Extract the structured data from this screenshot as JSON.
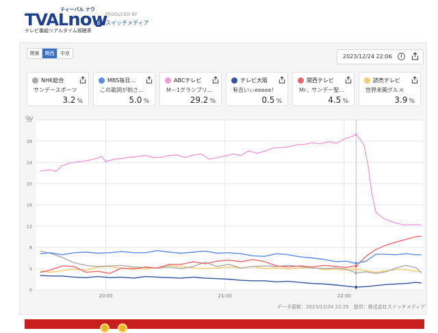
{
  "header": {
    "logo_text": "TVAL",
    "logo_now": "now",
    "logo_kana": "ティーバル ナウ",
    "logo_badge": "B",
    "logo_subtitle": "テレビ番組リアルタイム視聴率",
    "produced_by": "PRODUCED BY",
    "producer": "スイッチメディア"
  },
  "region_tabs": [
    {
      "label": "関東",
      "active": false
    },
    {
      "label": "関西",
      "active": true
    },
    {
      "label": "中京",
      "active": false
    }
  ],
  "timestamp": "2023/12/24 22:06",
  "cards": [
    {
      "station": "NHK総合",
      "program": "サンデースポーツ",
      "rate": "3.2",
      "unit": "%",
      "color": "#a9a9a9"
    },
    {
      "station": "MBS毎日…",
      "program": "この歌詞が刺さ…",
      "rate": "5.0",
      "unit": "%",
      "color": "#5b8be0"
    },
    {
      "station": "ABCテレビ",
      "program": "M－1グランプリ…",
      "rate": "29.2",
      "unit": "%",
      "color": "#f09ad6"
    },
    {
      "station": "テレビ大阪",
      "program": "有吉いぃeeeee！",
      "rate": "0.5",
      "unit": "%",
      "color": "#34519e"
    },
    {
      "station": "関西テレビ",
      "program": "Mr．サンデー聖…",
      "rate": "4.5",
      "unit": "%",
      "color": "#e8666a"
    },
    {
      "station": "読売テレビ",
      "program": "世界未開グルメ",
      "rate": "3.9",
      "unit": "%",
      "color": "#f6cc6a"
    }
  ],
  "footer_note": "データ更新：2023/12/24 22:25　提供：株式会社スイッチメディア",
  "chart_data": {
    "type": "line",
    "ylabel": "(%)",
    "ylim": [
      0,
      32
    ],
    "yticks": [
      0,
      4,
      8,
      12,
      16,
      20,
      24,
      28,
      32
    ],
    "xticks": [
      "20:00",
      "21:00",
      "22:00"
    ],
    "xrange_minutes": [
      -35,
      82
    ],
    "xtick_minutes": [
      0,
      60,
      120
    ],
    "cursor_minute": 126,
    "series": [
      {
        "name": "NHK総合",
        "color": "#a9a9a9",
        "x": [
          -33,
          -28,
          -22,
          -16,
          -10,
          -4,
          2,
          8,
          14,
          20,
          26,
          32,
          38,
          44,
          50,
          56,
          62,
          68,
          74,
          80,
          86,
          92,
          98,
          104,
          110,
          116,
          121,
          126,
          131,
          136,
          141,
          146,
          151,
          156,
          159
        ],
        "y": [
          7.3,
          6.9,
          6.1,
          5.1,
          4.6,
          4.4,
          4.5,
          4.6,
          4.3,
          4.2,
          4.1,
          4.3,
          4.0,
          4.4,
          5.2,
          4.4,
          4.8,
          4.1,
          4.4,
          4.5,
          4.4,
          4.6,
          4.4,
          4.1,
          4.0,
          4.1,
          3.9,
          3.2,
          3.4,
          3.1,
          3.4,
          4.1,
          4.6,
          4.2,
          3.2
        ]
      },
      {
        "name": "MBS毎日…",
        "color": "#5b8be0",
        "x": [
          -33,
          -28,
          -22,
          -16,
          -10,
          -4,
          2,
          8,
          14,
          20,
          26,
          32,
          38,
          44,
          50,
          56,
          62,
          68,
          74,
          80,
          86,
          92,
          98,
          104,
          110,
          116,
          121,
          126,
          131,
          136,
          141,
          146,
          151,
          156,
          159
        ],
        "y": [
          6.8,
          7.0,
          6.6,
          7.0,
          7.1,
          6.9,
          7.0,
          7.2,
          7.0,
          7.0,
          7.4,
          7.1,
          6.9,
          7.1,
          7.3,
          6.9,
          7.0,
          6.8,
          6.4,
          6.3,
          6.8,
          6.6,
          6.2,
          6.0,
          5.7,
          5.3,
          5.4,
          5.0,
          5.4,
          6.7,
          6.7,
          6.6,
          6.8,
          6.6,
          6.6
        ]
      },
      {
        "name": "ABCテレビ",
        "color": "#f09ad6",
        "x": [
          -33,
          -28,
          -25,
          -22,
          -18,
          -14,
          -10,
          -6,
          -2,
          0,
          4,
          8,
          12,
          16,
          20,
          24,
          28,
          32,
          36,
          40,
          44,
          48,
          52,
          56,
          60,
          64,
          68,
          72,
          76,
          80,
          84,
          88,
          92,
          96,
          100,
          104,
          108,
          112,
          116,
          120,
          124,
          126,
          128,
          130,
          132,
          134,
          136,
          140,
          144,
          150,
          156,
          159
        ],
        "y": [
          22.4,
          22.6,
          22.3,
          23.4,
          23.9,
          24.1,
          24.3,
          24.6,
          25.1,
          24.1,
          24.6,
          24.7,
          25.0,
          25.1,
          25.3,
          24.9,
          25.0,
          25.3,
          25.4,
          24.9,
          25.4,
          25.6,
          24.6,
          24.9,
          25.2,
          25.6,
          25.3,
          26.2,
          25.7,
          26.1,
          26.7,
          26.8,
          26.9,
          27.3,
          27.4,
          27.7,
          27.5,
          27.9,
          27.6,
          28.4,
          28.9,
          29.2,
          28.4,
          27.2,
          23.5,
          18.0,
          14.6,
          13.4,
          12.8,
          12.2,
          12.3,
          12.2
        ]
      },
      {
        "name": "テレビ大阪",
        "color": "#34519e",
        "x": [
          -33,
          -28,
          -22,
          -16,
          -10,
          -4,
          2,
          8,
          14,
          20,
          26,
          32,
          38,
          44,
          50,
          56,
          62,
          68,
          74,
          80,
          86,
          92,
          98,
          104,
          110,
          116,
          121,
          126,
          131,
          136,
          141,
          146,
          151,
          156,
          159
        ],
        "y": [
          2.7,
          2.6,
          2.6,
          2.4,
          2.3,
          2.5,
          2.3,
          2.4,
          2.2,
          2.5,
          2.4,
          2.3,
          2.2,
          2.4,
          2.2,
          2.1,
          2.0,
          1.8,
          1.7,
          1.7,
          1.5,
          1.6,
          1.4,
          1.2,
          1.1,
          0.9,
          0.7,
          0.5,
          0.6,
          0.8,
          1.0,
          1.1,
          1.2,
          1.4,
          1.3
        ]
      },
      {
        "name": "関西テレビ",
        "color": "#e8666a",
        "x": [
          -33,
          -28,
          -22,
          -16,
          -10,
          -4,
          2,
          8,
          14,
          20,
          26,
          32,
          38,
          44,
          50,
          56,
          62,
          68,
          74,
          80,
          86,
          92,
          98,
          104,
          110,
          116,
          121,
          126,
          128,
          131,
          136,
          141,
          146,
          151,
          156,
          159
        ],
        "y": [
          3.3,
          3.7,
          4.5,
          4.4,
          3.3,
          3.5,
          3.1,
          4.1,
          3.9,
          4.3,
          4.1,
          4.8,
          4.8,
          5.3,
          4.9,
          5.4,
          5.6,
          5.3,
          5.7,
          5.3,
          4.5,
          4.3,
          4.5,
          4.3,
          4.6,
          4.4,
          4.2,
          4.5,
          5.2,
          6.3,
          7.6,
          8.4,
          9.0,
          9.5,
          10.0,
          10.1
        ]
      },
      {
        "name": "読売テレビ",
        "color": "#f6cc6a",
        "x": [
          -33,
          -28,
          -22,
          -16,
          -10,
          -4,
          2,
          8,
          14,
          20,
          26,
          32,
          38,
          44,
          50,
          56,
          62,
          68,
          74,
          80,
          86,
          92,
          98,
          104,
          110,
          116,
          121,
          126,
          131,
          136,
          141,
          146,
          151,
          156,
          159
        ],
        "y": [
          3.6,
          3.3,
          3.6,
          3.9,
          3.7,
          4.3,
          4.4,
          4.0,
          4.1,
          3.9,
          4.2,
          4.6,
          4.4,
          4.1,
          4.0,
          4.1,
          4.3,
          4.1,
          4.4,
          4.0,
          4.1,
          3.9,
          4.1,
          4.2,
          3.8,
          3.9,
          3.7,
          3.9,
          3.6,
          3.3,
          3.6,
          3.8,
          3.8,
          3.5,
          3.4
        ]
      }
    ]
  }
}
